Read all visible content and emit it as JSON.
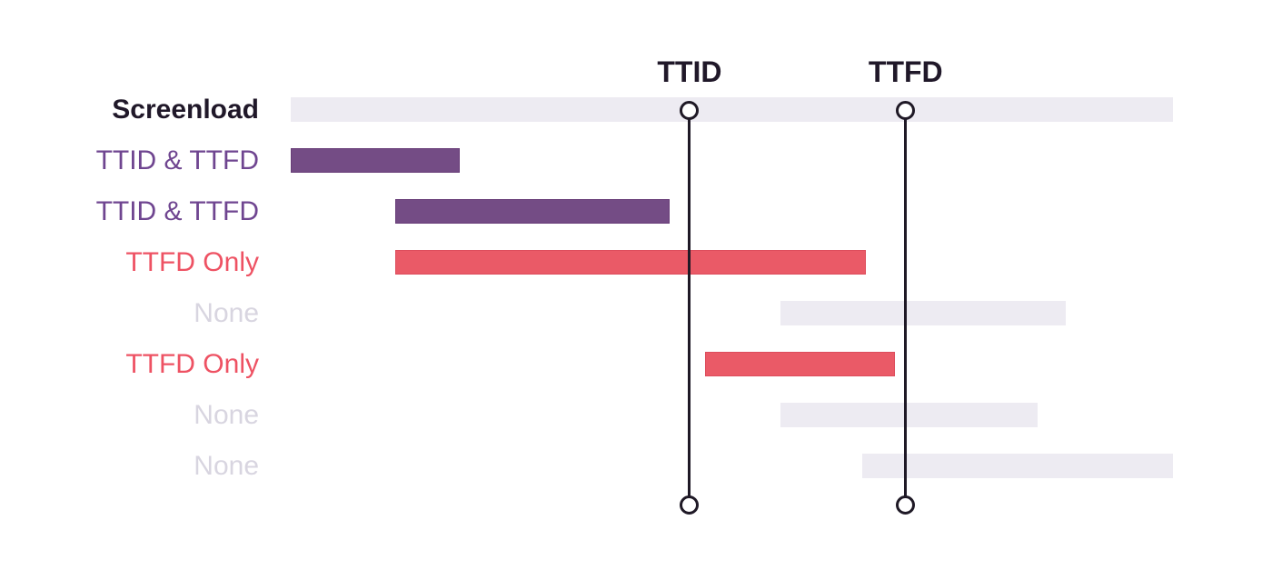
{
  "colors": {
    "background": "#ffffff",
    "screenload_bar": "#EDEBF2",
    "screenload_bar_border": "#EDEBF2",
    "none_bar": "#EDEBF2",
    "none_bar_border": "#EDEBF2",
    "both_bar": "#744C85",
    "both_bar_border": "#683D78",
    "ttfd_bar": "#EA5A67",
    "ttfd_bar_border": "#DD4D5C",
    "screenload_label": "#201829",
    "both_label": "#6F4590",
    "ttfd_label": "#EE5263",
    "none_label": "#D8D5E0",
    "marker_line": "#1F1926",
    "marker_label": "#201829",
    "circle_fill": "#FFFFFF"
  },
  "chart_data": {
    "type": "bar",
    "subtype": "horizontal-span-waterfall",
    "title": "",
    "xlabel": "",
    "ylabel": "",
    "xlim": [
      0,
      100
    ],
    "grid": false,
    "legend": false,
    "categories": [
      "Screenload",
      "TTID & TTFD",
      "TTID & TTFD",
      "TTFD Only",
      "None",
      "TTFD Only",
      "None",
      "None"
    ],
    "rows": [
      {
        "label": "Screenload",
        "variant": "screenload",
        "bold": true,
        "start": 0,
        "end": 100
      },
      {
        "label": "TTID & TTFD",
        "variant": "both",
        "bold": false,
        "start": 0,
        "end": 19.2
      },
      {
        "label": "TTID & TTFD",
        "variant": "both",
        "bold": false,
        "start": 11.8,
        "end": 42.9
      },
      {
        "label": "TTFD Only",
        "variant": "ttfd",
        "bold": false,
        "start": 11.8,
        "end": 65.2
      },
      {
        "label": "None",
        "variant": "none",
        "bold": false,
        "start": 55.5,
        "end": 87.8
      },
      {
        "label": "TTFD Only",
        "variant": "ttfd",
        "bold": false,
        "start": 47.0,
        "end": 68.5
      },
      {
        "label": "None",
        "variant": "none",
        "bold": false,
        "start": 55.5,
        "end": 84.7
      },
      {
        "label": "None",
        "variant": "none",
        "bold": false,
        "start": 64.8,
        "end": 100
      }
    ],
    "markers": [
      {
        "id": "ttid",
        "label": "TTID",
        "position": 45.2
      },
      {
        "id": "ttfd",
        "label": "TTFD",
        "position": 69.7
      }
    ]
  }
}
